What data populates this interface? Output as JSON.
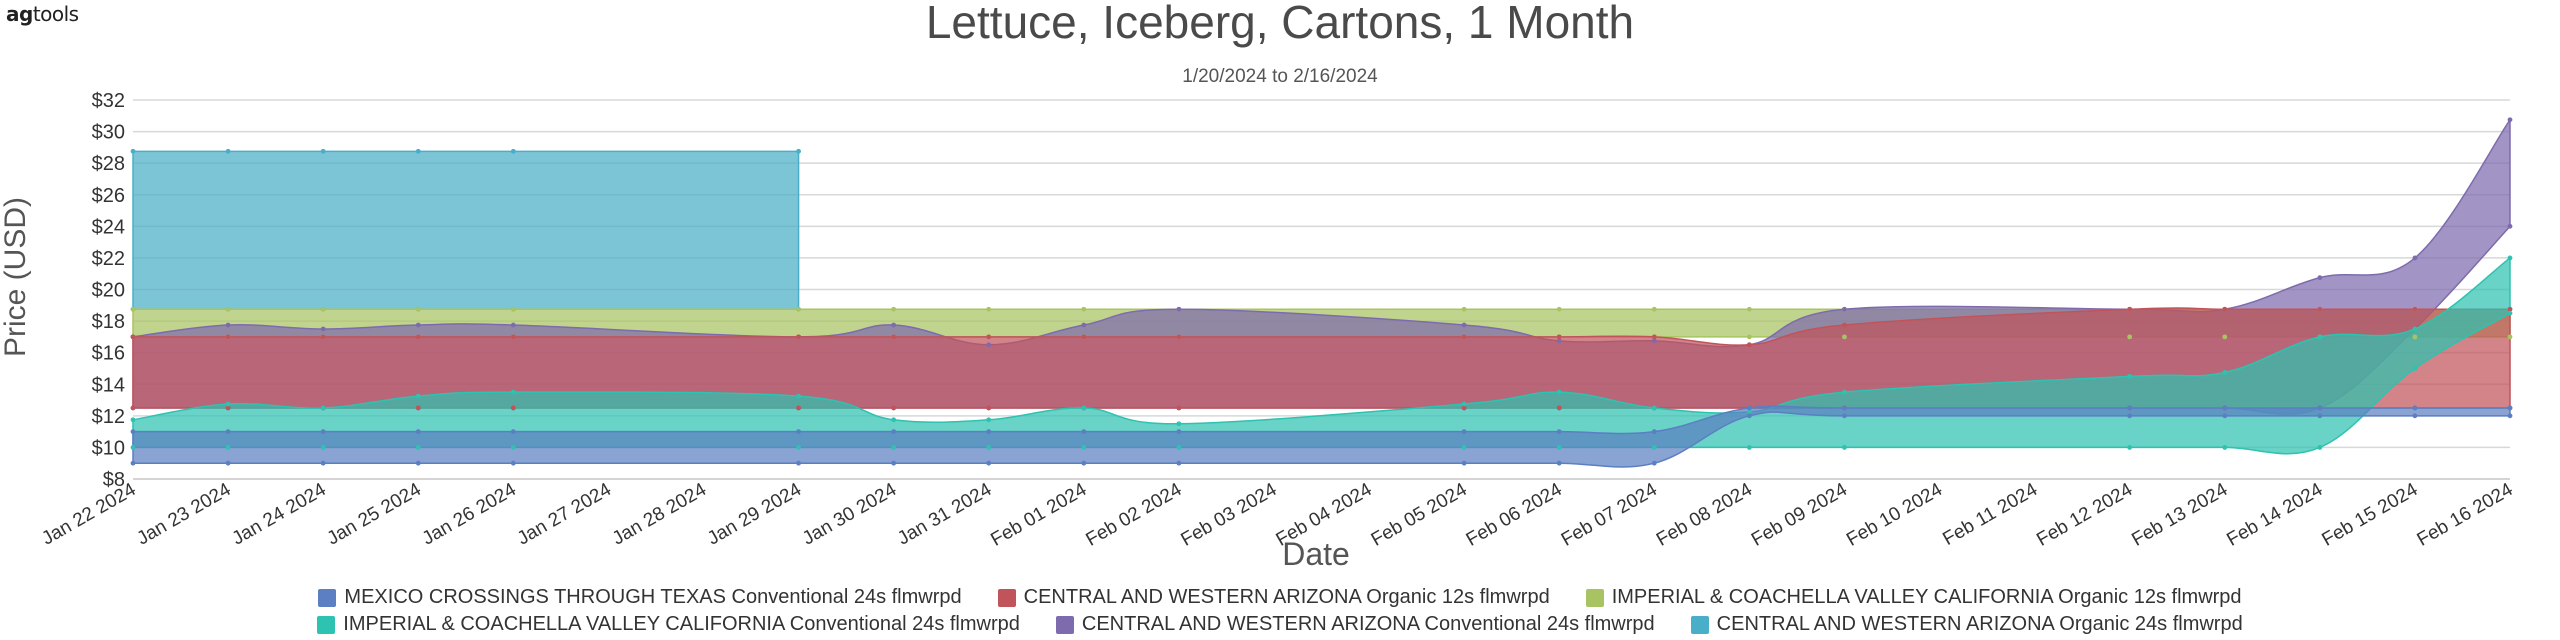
{
  "logo": {
    "part1": "ag",
    "part2": "tools"
  },
  "chart_data": {
    "type": "area",
    "title": "Lettuce, Iceberg, Cartons, 1 Month",
    "subtitle": "1/20/2024 to 2/16/2024",
    "xlabel": "Date",
    "ylabel": "Price (USD)",
    "ylim": [
      8,
      32
    ],
    "yticks": [
      "$8",
      "$10",
      "$12",
      "$14",
      "$16",
      "$18",
      "$20",
      "$22",
      "$24",
      "$26",
      "$28",
      "$30",
      "$32"
    ],
    "grid": true,
    "legend_position": "bottom",
    "categories": [
      "Jan 22 2024",
      "Jan 23 2024",
      "Jan 24 2024",
      "Jan 25 2024",
      "Jan 26 2024",
      "Jan 27 2024",
      "Jan 28 2024",
      "Jan 29 2024",
      "Jan 30 2024",
      "Jan 31 2024",
      "Feb 01 2024",
      "Feb 02 2024",
      "Feb 03 2024",
      "Feb 04 2024",
      "Feb 05 2024",
      "Feb 06 2024",
      "Feb 07 2024",
      "Feb 08 2024",
      "Feb 09 2024",
      "Feb 10 2024",
      "Feb 11 2024",
      "Feb 12 2024",
      "Feb 13 2024",
      "Feb 14 2024",
      "Feb 15 2024",
      "Feb 16 2024"
    ],
    "series": [
      {
        "name": "CENTRAL AND WESTERN ARIZONA Organic 24s flmwrpd",
        "color": "#49afc8",
        "low": [
          18.75,
          18.75,
          18.75,
          18.75,
          18.75,
          null,
          null,
          18.75
        ],
        "high": [
          28.75,
          28.75,
          28.75,
          28.75,
          28.75,
          null,
          null,
          28.75
        ]
      },
      {
        "name": "IMPERIAL & COACHELLA VALLEY CALIFORNIA Organic 12s flmwrpd",
        "color": "#a8c462",
        "low": [
          17,
          17,
          17,
          17,
          17,
          null,
          null,
          17,
          17,
          17,
          17,
          17,
          null,
          null,
          17,
          17,
          17,
          17,
          17,
          null,
          null,
          17,
          17,
          17,
          17,
          17
        ],
        "high": [
          18.75,
          18.75,
          18.75,
          18.75,
          18.75,
          null,
          null,
          18.75,
          18.75,
          18.75,
          18.75,
          18.75,
          null,
          null,
          18.75,
          18.75,
          18.75,
          18.75,
          18.75,
          null,
          null,
          18.75,
          18.75,
          18.75,
          18.75,
          18.75
        ]
      },
      {
        "name": "CENTRAL AND WESTERN ARIZONA Conventional 24s flmwrpd",
        "color": "#7e6bad",
        "low": [
          12.5,
          12.5,
          12.5,
          12.5,
          12.5,
          null,
          null,
          12.5,
          12.5,
          12.5,
          12.5,
          12.5,
          null,
          null,
          12.5,
          12.5,
          12.5,
          12.5,
          12.5,
          null,
          null,
          12.5,
          12.5,
          12.5,
          17.5,
          24
        ],
        "high": [
          17,
          17.75,
          17.5,
          17.75,
          17.75,
          null,
          null,
          17,
          17.75,
          16.5,
          17.75,
          18.75,
          null,
          null,
          17.75,
          16.75,
          16.75,
          16.5,
          18.75,
          null,
          null,
          18.75,
          18.75,
          20.75,
          22,
          30.75
        ]
      },
      {
        "name": "CENTRAL AND WESTERN ARIZONA Organic 12s flmwrpd",
        "color": "#c1545a",
        "low": [
          12.5,
          12.5,
          12.5,
          12.5,
          12.5,
          null,
          null,
          12.5,
          12.5,
          12.5,
          12.5,
          12.5,
          null,
          null,
          12.5,
          12.5,
          12.5,
          12.5,
          12.5,
          null,
          null,
          12.5,
          12.5,
          12.5,
          12.5,
          12.5
        ],
        "high": [
          17,
          17,
          17,
          17,
          17,
          null,
          null,
          17,
          17,
          17,
          17,
          17,
          null,
          null,
          17,
          17,
          17,
          16.5,
          17.75,
          null,
          null,
          18.75,
          18.75,
          18.75,
          18.75,
          18.75
        ]
      },
      {
        "name": "IMPERIAL & COACHELLA VALLEY CALIFORNIA Conventional 24s flmwrpd",
        "color": "#2ec2b0",
        "low": [
          10,
          10,
          10,
          10,
          10,
          null,
          null,
          10,
          10,
          10,
          10,
          10,
          null,
          null,
          10,
          10,
          10,
          10,
          10,
          null,
          null,
          10,
          10,
          10,
          15,
          18.5
        ],
        "high": [
          11.75,
          12.75,
          12.5,
          13.25,
          13.5,
          null,
          null,
          13.25,
          11.75,
          11.75,
          12.5,
          11.5,
          null,
          null,
          12.75,
          13.5,
          12.5,
          12.25,
          13.5,
          null,
          null,
          14.5,
          14.75,
          17,
          17.5,
          22
        ]
      },
      {
        "name": "MEXICO CROSSINGS THROUGH TEXAS Conventional 24s flmwrpd",
        "color": "#5b7fc2",
        "low": [
          9,
          9,
          9,
          9,
          9,
          null,
          null,
          9,
          9,
          9,
          9,
          9,
          null,
          null,
          9,
          9,
          9,
          12,
          12,
          null,
          null,
          12,
          12,
          12,
          12,
          12
        ],
        "high": [
          11,
          11,
          11,
          11,
          11,
          null,
          null,
          11,
          11,
          11,
          11,
          11,
          null,
          null,
          11,
          11,
          11,
          12.5,
          12.5,
          null,
          null,
          12.5,
          12.5,
          12.5,
          12.5,
          12.5
        ]
      }
    ],
    "legend_order": [
      5,
      3,
      1,
      4,
      2,
      0
    ]
  }
}
